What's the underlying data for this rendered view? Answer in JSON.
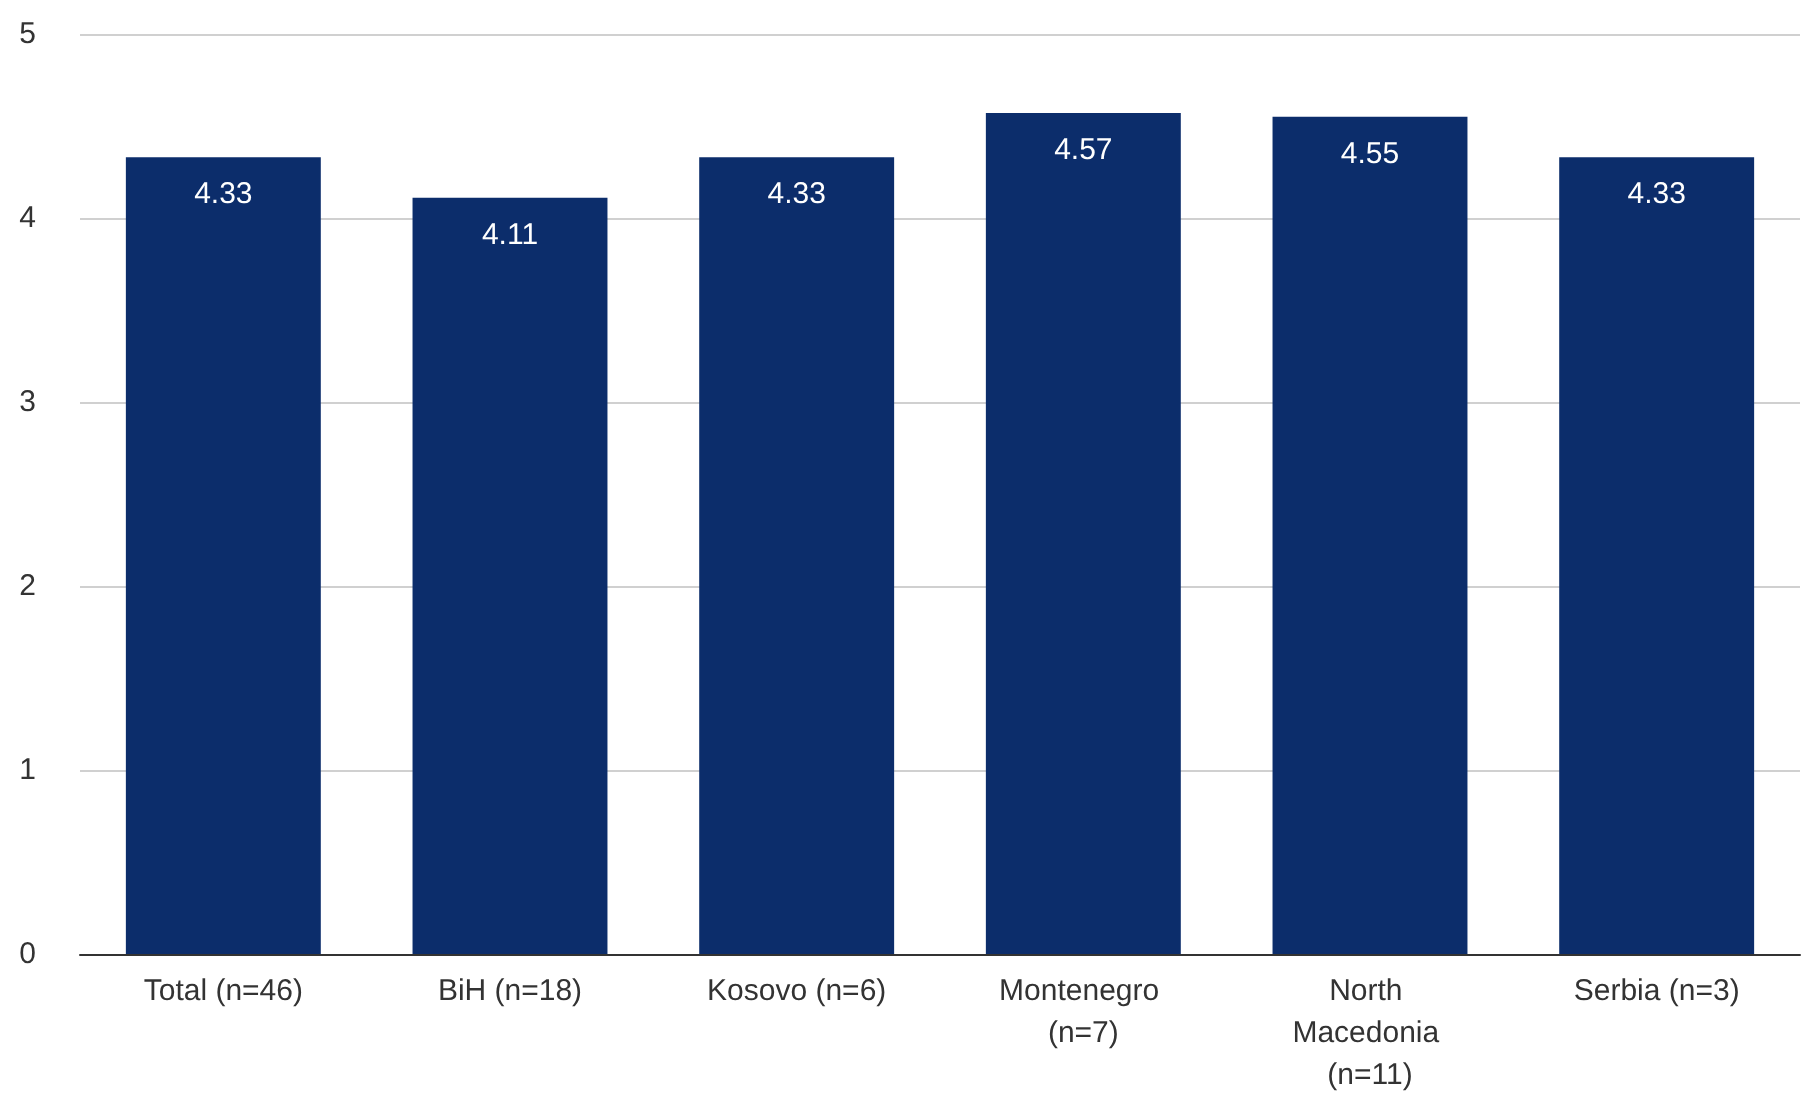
{
  "chart_data": {
    "type": "bar",
    "categories": [
      "Total (n=46)",
      "BiH (n=18)",
      "Kosovo (n=6)",
      "Montenegro (n=7)",
      "North Macedonia (n=11)",
      "Serbia (n=3)"
    ],
    "values": [
      4.33,
      4.11,
      4.33,
      4.57,
      4.55,
      4.33
    ],
    "color": "#0c2d6b",
    "ylim": [
      0,
      5
    ],
    "yticks": [
      0,
      1,
      2,
      3,
      4,
      5
    ],
    "grid": "y",
    "data_labels": true
  }
}
